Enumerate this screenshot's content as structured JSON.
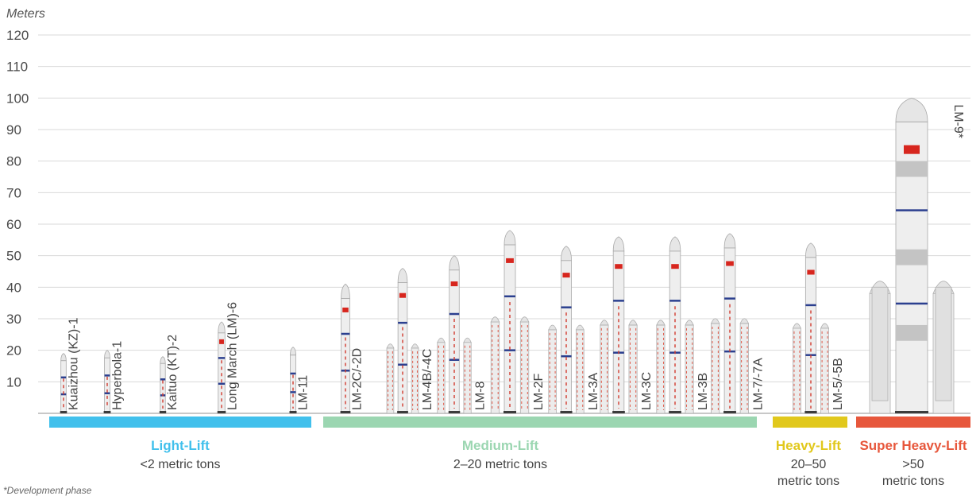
{
  "chart_data": {
    "type": "bar",
    "ylabel": "Meters",
    "ylim": [
      0,
      120
    ],
    "yticks": [
      10,
      20,
      30,
      40,
      50,
      60,
      70,
      80,
      90,
      100,
      110,
      120
    ],
    "grid": true,
    "categories": [
      "Kuaizhou (KZ)-1",
      "Hyperbola-1",
      "Kaituo (KT)-2",
      "Long March (LM)-6",
      "LM-11",
      "LM-2C/-2D",
      "LM-4B/-4C",
      "LM-8",
      "LM-2F",
      "LM-3A",
      "LM-3C",
      "LM-3B",
      "LM-7/-7A",
      "LM-5/-5B",
      "LM-9*"
    ],
    "values": [
      19,
      20,
      18,
      29,
      21,
      41,
      46,
      50,
      58,
      53,
      56,
      56,
      57,
      54,
      100
    ],
    "groups": [
      {
        "name": "Light-Lift",
        "desc": [
          "<2 metric tons"
        ],
        "color": "#41c0ec",
        "members": [
          0,
          1,
          2,
          3,
          4
        ]
      },
      {
        "name": "Medium-Lift",
        "desc": [
          "2–20 metric tons"
        ],
        "color": "#9bd6b1",
        "members": [
          5,
          6,
          7,
          8,
          9,
          10,
          11,
          12
        ]
      },
      {
        "name": "Heavy-Lift",
        "desc": [
          "20–50",
          "metric tons"
        ],
        "color": "#e1c81c",
        "members": [
          13
        ]
      },
      {
        "name": "Super Heavy-Lift",
        "desc": [
          ">50",
          "metric tons"
        ],
        "color": "#e7573c",
        "members": [
          14
        ]
      }
    ],
    "footnote": "*Development phase"
  }
}
